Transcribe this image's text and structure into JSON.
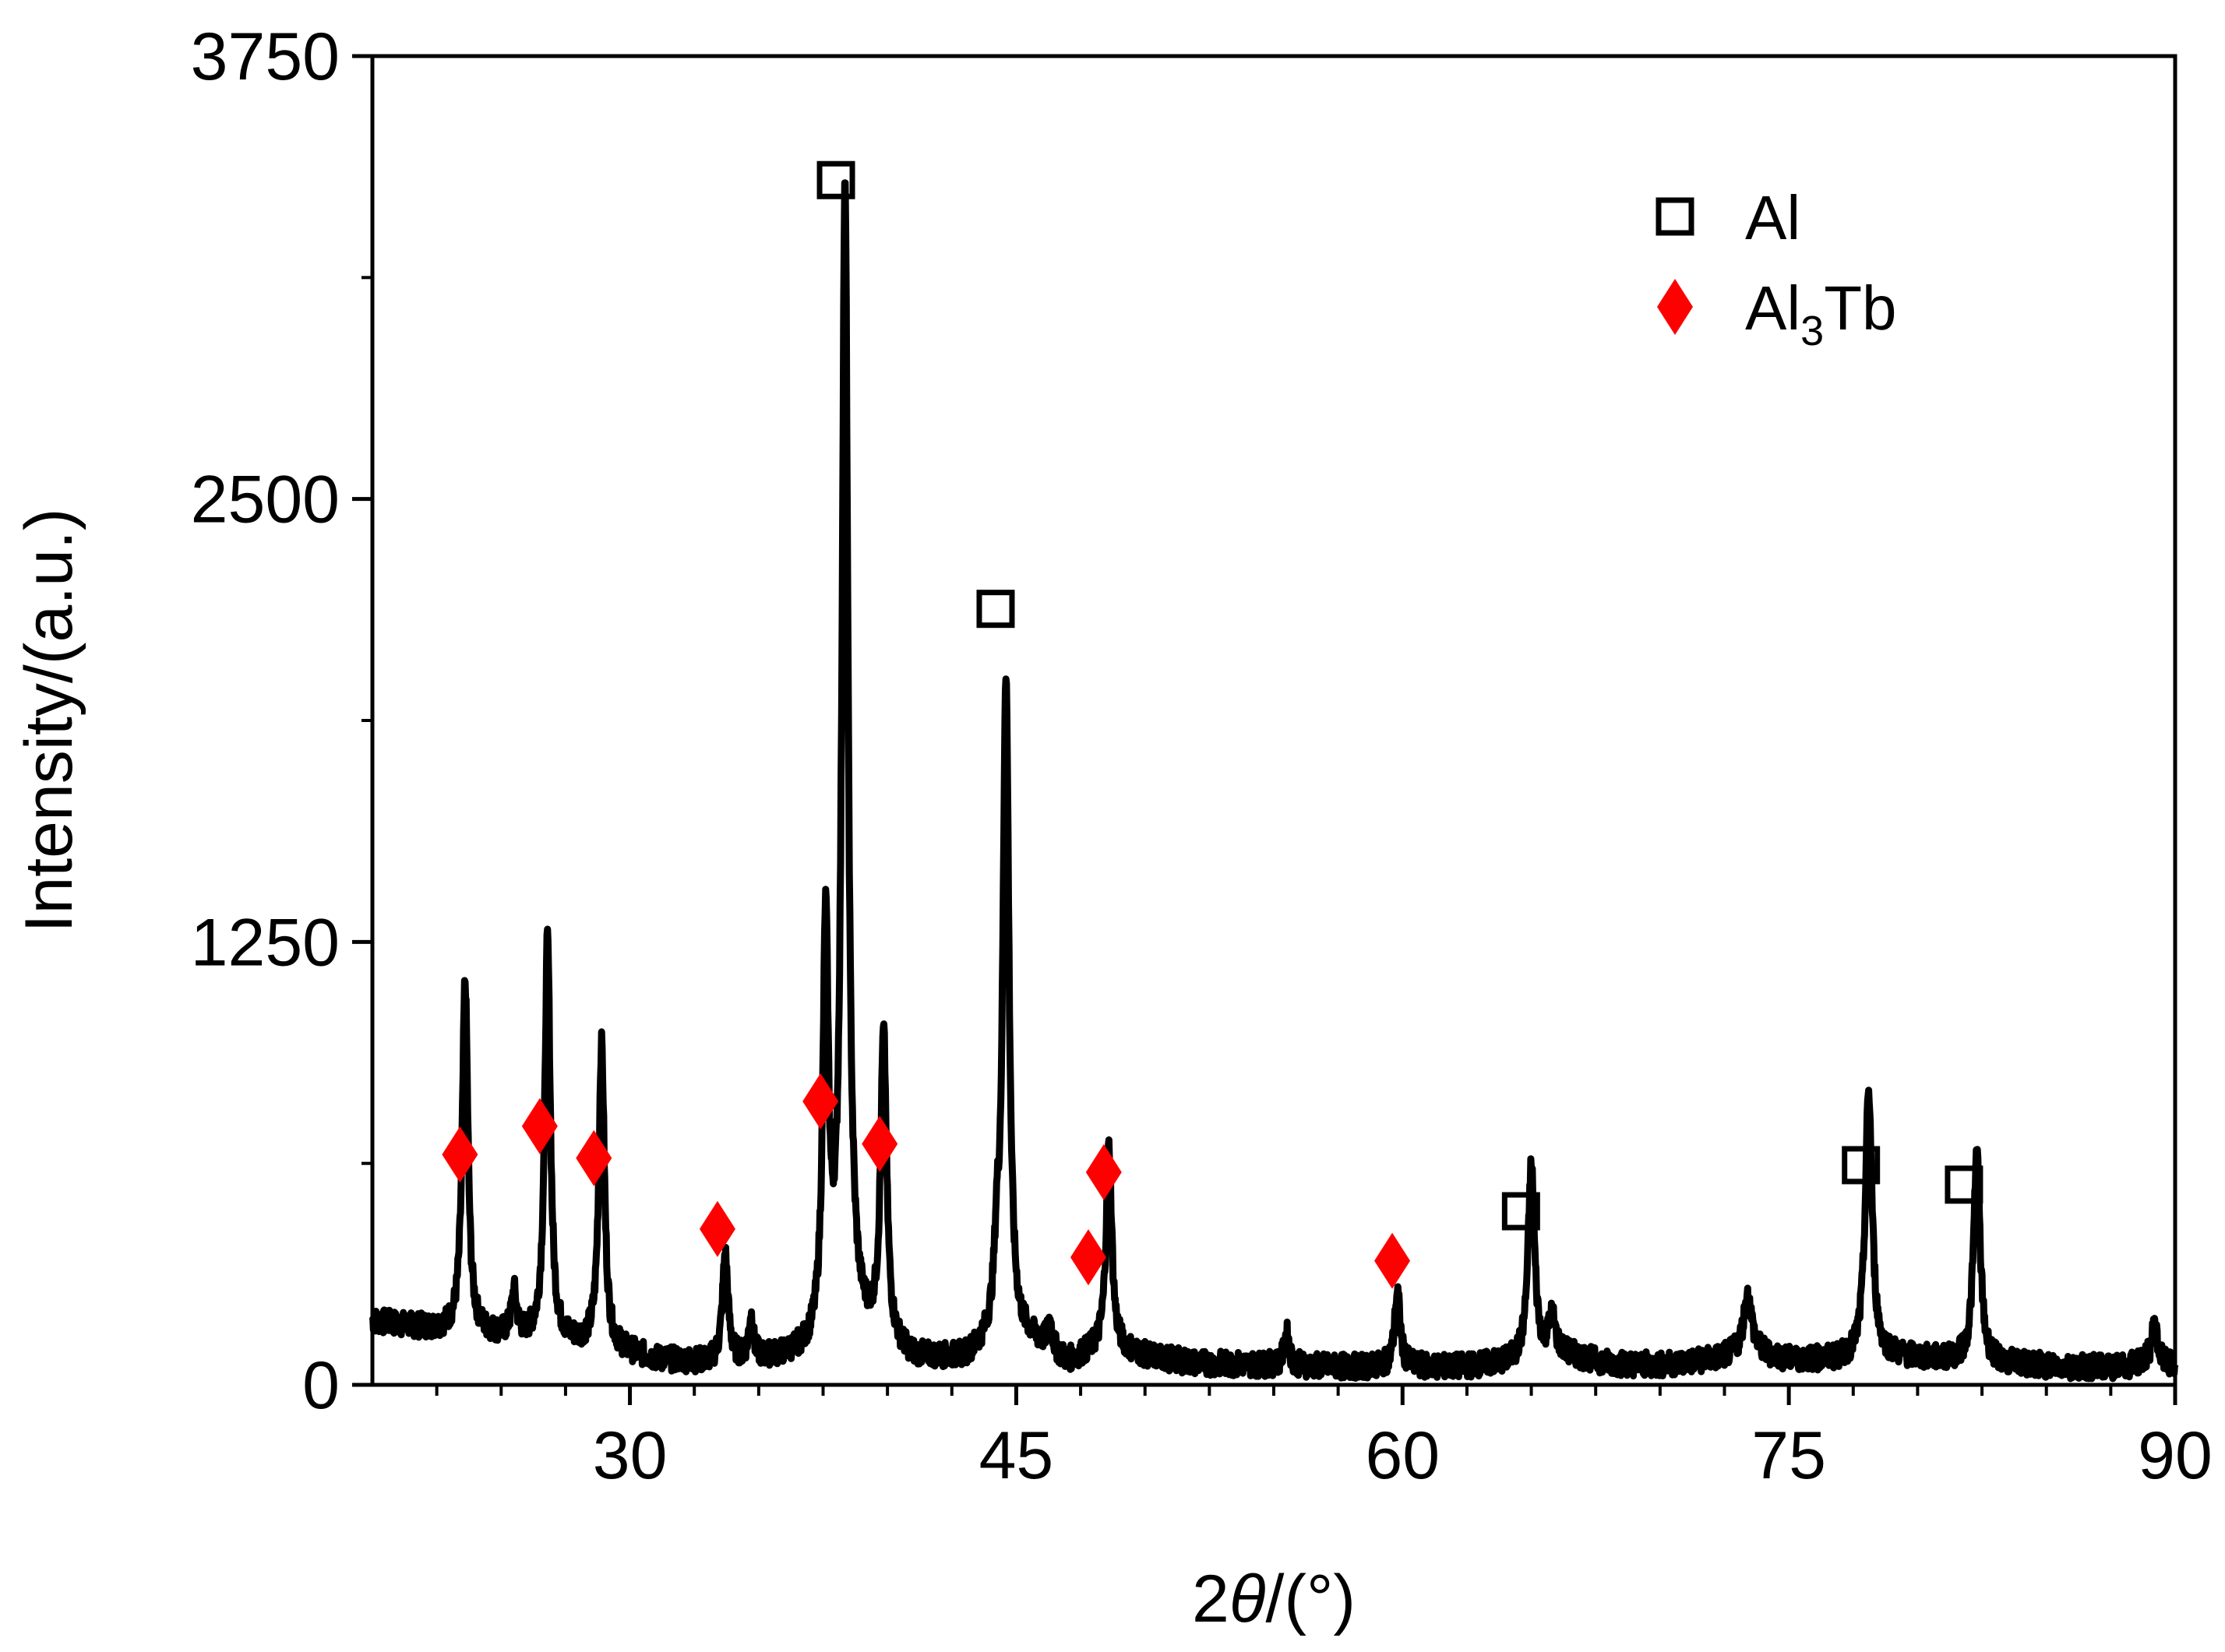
{
  "chart_data": {
    "type": "line",
    "xlabel": {
      "prefix": "2",
      "italic": "θ",
      "suffix": "/(°)"
    },
    "ylabel": "Intensity/(a.u.)",
    "xlim": [
      20,
      90
    ],
    "ylim": [
      0,
      3750
    ],
    "xticks": [
      30,
      45,
      60,
      75,
      90
    ],
    "yticks": [
      0,
      1250,
      2500,
      3750
    ],
    "x_minor_step": 2.5,
    "y_minor_step": 625,
    "grid": false,
    "legend_position": "top-right",
    "colors": {
      "line": "#000000",
      "al_marker": "#000000",
      "al3tb_marker": "#ff0000"
    },
    "legend": [
      {
        "label": "Al",
        "sub": "",
        "after": "",
        "marker": "open-square"
      },
      {
        "label": "Al",
        "sub": "3",
        "after": "Tb",
        "marker": "red-diamond"
      }
    ],
    "baseline_points": [
      [
        20,
        180
      ],
      [
        22,
        160
      ],
      [
        24.5,
        140
      ],
      [
        26,
        130
      ],
      [
        27.5,
        120
      ],
      [
        29,
        105
      ],
      [
        31,
        70
      ],
      [
        33,
        60
      ],
      [
        35,
        70
      ],
      [
        36,
        75
      ],
      [
        37,
        90
      ],
      [
        38.5,
        150
      ],
      [
        41,
        70
      ],
      [
        43,
        70
      ],
      [
        44,
        110
      ],
      [
        45.5,
        120
      ],
      [
        47,
        60
      ],
      [
        48.5,
        110
      ],
      [
        50,
        80
      ],
      [
        52,
        60
      ],
      [
        55,
        55
      ],
      [
        58,
        50
      ],
      [
        62,
        50
      ],
      [
        64,
        60
      ],
      [
        66,
        90
      ],
      [
        68,
        60
      ],
      [
        70,
        55
      ],
      [
        72,
        70
      ],
      [
        73.5,
        90
      ],
      [
        75,
        70
      ],
      [
        77,
        70
      ],
      [
        79,
        80
      ],
      [
        81,
        70
      ],
      [
        83,
        60
      ],
      [
        86,
        50
      ],
      [
        88,
        50
      ],
      [
        89,
        70
      ],
      [
        90,
        50
      ]
    ],
    "peaks": [
      {
        "x": 23.6,
        "y": 990,
        "width": 0.13
      },
      {
        "x": 25.5,
        "y": 120,
        "width": 0.12
      },
      {
        "x": 26.8,
        "y": 1130,
        "width": 0.13
      },
      {
        "x": 28.9,
        "y": 850,
        "width": 0.13
      },
      {
        "x": 33.7,
        "y": 300,
        "width": 0.13
      },
      {
        "x": 34.7,
        "y": 120,
        "width": 0.1
      },
      {
        "x": 37.6,
        "y": 1150,
        "width": 0.13
      },
      {
        "x": 38.35,
        "y": 3200,
        "width": 0.14
      },
      {
        "x": 39.85,
        "y": 860,
        "width": 0.14
      },
      {
        "x": 44.25,
        "y": 200,
        "width": 0.12
      },
      {
        "x": 44.6,
        "y": 1880,
        "width": 0.14
      },
      {
        "x": 46.3,
        "y": 80,
        "width": 0.12
      },
      {
        "x": 48.6,
        "y": 560,
        "width": 0.13
      },
      {
        "x": 55.5,
        "y": 90,
        "width": 0.12
      },
      {
        "x": 59.8,
        "y": 210,
        "width": 0.13
      },
      {
        "x": 65.0,
        "y": 540,
        "width": 0.15
      },
      {
        "x": 65.8,
        "y": 100,
        "width": 0.15
      },
      {
        "x": 73.4,
        "y": 160,
        "width": 0.2
      },
      {
        "x": 78.1,
        "y": 750,
        "width": 0.16
      },
      {
        "x": 82.3,
        "y": 590,
        "width": 0.15
      },
      {
        "x": 89.2,
        "y": 110,
        "width": 0.12
      }
    ],
    "series": [
      {
        "name": "Al",
        "markers": [
          [
            38.0,
            3400
          ],
          [
            44.2,
            2190
          ],
          [
            64.6,
            490
          ],
          [
            77.8,
            620
          ],
          [
            81.8,
            565
          ]
        ]
      },
      {
        "name": "Al3Tb",
        "markers": [
          [
            23.4,
            650
          ],
          [
            26.5,
            730
          ],
          [
            28.6,
            640
          ],
          [
            33.4,
            440
          ],
          [
            37.4,
            800
          ],
          [
            39.7,
            680
          ],
          [
            47.8,
            360
          ],
          [
            48.4,
            600
          ],
          [
            59.6,
            350
          ]
        ]
      }
    ]
  }
}
